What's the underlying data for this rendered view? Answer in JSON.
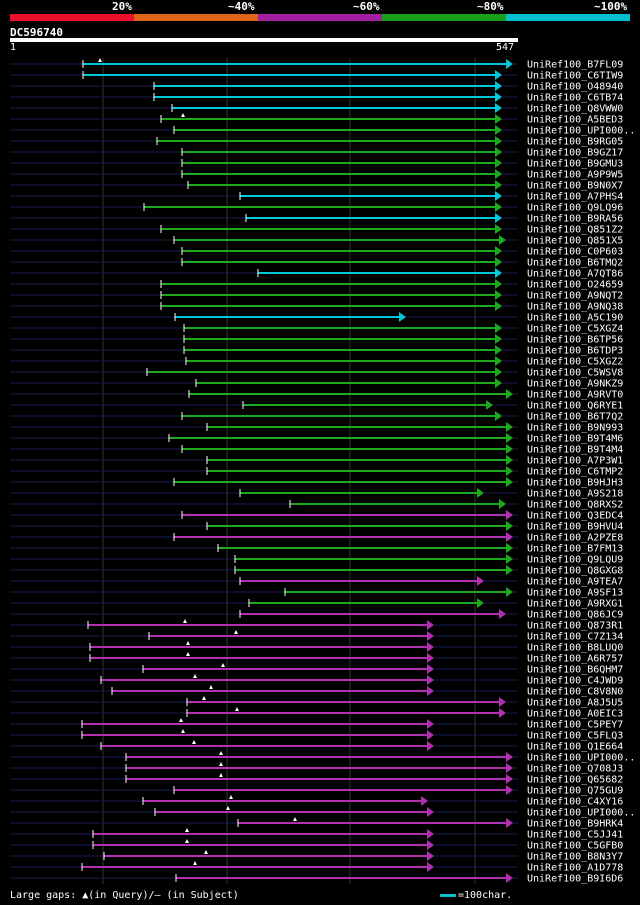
{
  "chart_data": {
    "type": "alignment",
    "query_id": "DC596740",
    "query_length": 547,
    "axis_start_label": "1",
    "axis_end_label": "547",
    "identity_legend": [
      {
        "label": "20%",
        "color": "#e8102a"
      },
      {
        "label": "~40%",
        "color": "#e06418"
      },
      {
        "label": "~60%",
        "color": "#a020a0"
      },
      {
        "label": "~80%",
        "color": "#18a018"
      },
      {
        "label": "~100%",
        "color": "#00c0d0"
      }
    ],
    "footer_text": "Large gaps: ▲(in Query)/– (in Subject)",
    "scale_text": "=100char.",
    "hits": [
      {
        "id": "UniRef100_B7FL09",
        "start": 83,
        "end": 513,
        "color": "cyan",
        "gap": 100
      },
      {
        "id": "UniRef100_C6TIW9",
        "start": 83,
        "end": 502,
        "color": "cyan"
      },
      {
        "id": "UniRef100_O48940",
        "start": 154,
        "end": 502,
        "color": "cyan"
      },
      {
        "id": "UniRef100_C6TB74",
        "start": 154,
        "end": 502,
        "color": "cyan"
      },
      {
        "id": "UniRef100_Q8VWW0",
        "start": 172,
        "end": 502,
        "color": "cyan"
      },
      {
        "id": "UniRef100_A5BED3",
        "start": 161,
        "end": 502,
        "color": "green",
        "gap": 183
      },
      {
        "id": "UniRef100_UPI000..",
        "start": 174,
        "end": 502,
        "color": "green"
      },
      {
        "id": "UniRef100_B9RG05",
        "start": 157,
        "end": 502,
        "color": "green"
      },
      {
        "id": "UniRef100_B9GZ17",
        "start": 182,
        "end": 502,
        "color": "green"
      },
      {
        "id": "UniRef100_B9GMU3",
        "start": 182,
        "end": 502,
        "color": "green"
      },
      {
        "id": "UniRef100_A9P9W5",
        "start": 182,
        "end": 502,
        "color": "green"
      },
      {
        "id": "UniRef100_B9N0X7",
        "start": 188,
        "end": 502,
        "color": "green"
      },
      {
        "id": "UniRef100_A7PHS4",
        "start": 240,
        "end": 502,
        "color": "cyan"
      },
      {
        "id": "UniRef100_Q9LQ96",
        "start": 144,
        "end": 502,
        "color": "green"
      },
      {
        "id": "UniRef100_B9RA56",
        "start": 246,
        "end": 502,
        "color": "cyan"
      },
      {
        "id": "UniRef100_Q851Z2",
        "start": 161,
        "end": 502,
        "color": "green"
      },
      {
        "id": "UniRef100_Q851X5",
        "start": 174,
        "end": 506,
        "color": "green"
      },
      {
        "id": "UniRef100_C0P603",
        "start": 182,
        "end": 502,
        "color": "green"
      },
      {
        "id": "UniRef100_B6TMQ2",
        "start": 182,
        "end": 502,
        "color": "green"
      },
      {
        "id": "UniRef100_A7QT86",
        "start": 258,
        "end": 502,
        "color": "cyan"
      },
      {
        "id": "UniRef100_O24659",
        "start": 161,
        "end": 502,
        "color": "green"
      },
      {
        "id": "UniRef100_A9NQT2",
        "start": 161,
        "end": 502,
        "color": "green"
      },
      {
        "id": "UniRef100_A9NQ38",
        "start": 161,
        "end": 502,
        "color": "green"
      },
      {
        "id": "UniRef100_A5C190",
        "start": 175,
        "end": 406,
        "color": "cyan"
      },
      {
        "id": "UniRef100_C5XGZ4",
        "start": 184,
        "end": 502,
        "color": "green"
      },
      {
        "id": "UniRef100_B6TP56",
        "start": 184,
        "end": 502,
        "color": "green"
      },
      {
        "id": "UniRef100_B6TDP3",
        "start": 184,
        "end": 502,
        "color": "green"
      },
      {
        "id": "UniRef100_C5XGZ2",
        "start": 186,
        "end": 502,
        "color": "green"
      },
      {
        "id": "UniRef100_C5WSV8",
        "start": 147,
        "end": 502,
        "color": "green"
      },
      {
        "id": "UniRef100_A9NKZ9",
        "start": 196,
        "end": 502,
        "color": "green"
      },
      {
        "id": "UniRef100_A9RVT0",
        "start": 189,
        "end": 513,
        "color": "green"
      },
      {
        "id": "UniRef100_Q6RYE1",
        "start": 243,
        "end": 493,
        "color": "green"
      },
      {
        "id": "UniRef100_B6T7Q2",
        "start": 182,
        "end": 502,
        "color": "green"
      },
      {
        "id": "UniRef100_B9N993",
        "start": 207,
        "end": 513,
        "color": "green"
      },
      {
        "id": "UniRef100_B9T4M6",
        "start": 169,
        "end": 513,
        "color": "green"
      },
      {
        "id": "UniRef100_B9T4M4",
        "start": 182,
        "end": 513,
        "color": "green"
      },
      {
        "id": "UniRef100_A7P3W1",
        "start": 207,
        "end": 513,
        "color": "green"
      },
      {
        "id": "UniRef100_C6TMP2",
        "start": 207,
        "end": 513,
        "color": "green"
      },
      {
        "id": "UniRef100_B9HJH3",
        "start": 174,
        "end": 513,
        "color": "green"
      },
      {
        "id": "UniRef100_A9S218",
        "start": 240,
        "end": 484,
        "color": "green"
      },
      {
        "id": "UniRef100_Q8RXS2",
        "start": 290,
        "end": 506,
        "color": "green"
      },
      {
        "id": "UniRef100_Q3EDC4",
        "start": 182,
        "end": 513,
        "color": "magenta"
      },
      {
        "id": "UniRef100_B9HVU4",
        "start": 207,
        "end": 513,
        "color": "green"
      },
      {
        "id": "UniRef100_A2PZE8",
        "start": 174,
        "end": 513,
        "color": "magenta"
      },
      {
        "id": "UniRef100_B7FM13",
        "start": 218,
        "end": 513,
        "color": "green"
      },
      {
        "id": "UniRef100_Q9LQU9",
        "start": 235,
        "end": 513,
        "color": "green"
      },
      {
        "id": "UniRef100_Q8GXG8",
        "start": 235,
        "end": 513,
        "color": "green"
      },
      {
        "id": "UniRef100_A9TEA7",
        "start": 240,
        "end": 484,
        "color": "magenta"
      },
      {
        "id": "UniRef100_A9SF13",
        "start": 285,
        "end": 513,
        "color": "green"
      },
      {
        "id": "UniRef100_A9RXG1",
        "start": 249,
        "end": 484,
        "color": "green"
      },
      {
        "id": "UniRef100_Q86JC9",
        "start": 240,
        "end": 506,
        "color": "magenta"
      },
      {
        "id": "UniRef100_Q873R1",
        "start": 88,
        "end": 434,
        "color": "magenta",
        "gap": 185
      },
      {
        "id": "UniRef100_C7Z134",
        "start": 149,
        "end": 434,
        "color": "magenta",
        "gap": 236
      },
      {
        "id": "UniRef100_B8LUQ0",
        "start": 90,
        "end": 434,
        "color": "magenta",
        "gap": 188
      },
      {
        "id": "UniRef100_A6R757",
        "start": 90,
        "end": 434,
        "color": "magenta",
        "gap": 188
      },
      {
        "id": "UniRef100_B6QHM7",
        "start": 143,
        "end": 434,
        "color": "magenta",
        "gap": 223
      },
      {
        "id": "UniRef100_C4JWD9",
        "start": 101,
        "end": 434,
        "color": "magenta",
        "gap": 195
      },
      {
        "id": "UniRef100_C8V8N0",
        "start": 112,
        "end": 434,
        "color": "magenta",
        "gap": 211
      },
      {
        "id": "UniRef100_A8J5U5",
        "start": 187,
        "end": 506,
        "color": "magenta",
        "gap": 204
      },
      {
        "id": "UniRef100_A0EIC3",
        "start": 187,
        "end": 506,
        "color": "magenta",
        "gap": 237
      },
      {
        "id": "UniRef100_C5PEY7",
        "start": 82,
        "end": 434,
        "color": "magenta",
        "gap": 181
      },
      {
        "id": "UniRef100_C5FLQ3",
        "start": 82,
        "end": 434,
        "color": "magenta",
        "gap": 183
      },
      {
        "id": "UniRef100_Q1E664",
        "start": 101,
        "end": 434,
        "color": "magenta",
        "gap": 194
      },
      {
        "id": "UniRef100_UPI000..",
        "start": 126,
        "end": 513,
        "color": "magenta",
        "gap": 221
      },
      {
        "id": "UniRef100_Q708J3",
        "start": 126,
        "end": 513,
        "color": "magenta",
        "gap": 221
      },
      {
        "id": "UniRef100_Q65682",
        "start": 126,
        "end": 513,
        "color": "magenta",
        "gap": 221
      },
      {
        "id": "UniRef100_Q75GU9",
        "start": 174,
        "end": 513,
        "color": "magenta"
      },
      {
        "id": "UniRef100_C4XY16",
        "start": 143,
        "end": 428,
        "color": "magenta",
        "gap": 231
      },
      {
        "id": "UniRef100_UPI000..",
        "start": 155,
        "end": 434,
        "color": "magenta",
        "gap": 228
      },
      {
        "id": "UniRef100_B9HRK4",
        "start": 238,
        "end": 513,
        "color": "magenta",
        "gap": 295
      },
      {
        "id": "UniRef100_C5JJ41",
        "start": 93,
        "end": 434,
        "color": "magenta",
        "gap": 187
      },
      {
        "id": "UniRef100_C5GFB0",
        "start": 93,
        "end": 434,
        "color": "magenta",
        "gap": 187
      },
      {
        "id": "UniRef100_B8N3Y7",
        "start": 104,
        "end": 434,
        "color": "magenta",
        "gap": 206
      },
      {
        "id": "UniRef100_A1D778",
        "start": 82,
        "end": 434,
        "color": "magenta",
        "gap": 195
      },
      {
        "id": "UniRef100_B9I6D6",
        "start": 176,
        "end": 513,
        "color": "magenta"
      }
    ]
  }
}
